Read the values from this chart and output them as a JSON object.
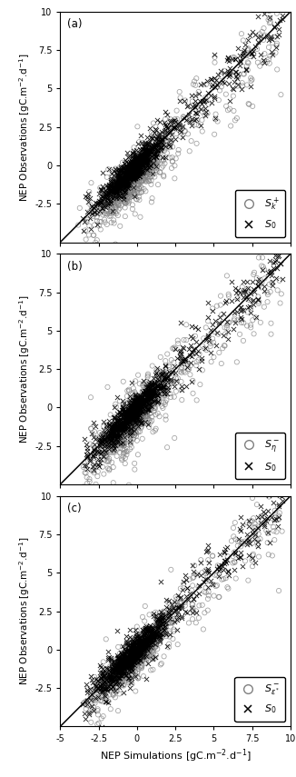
{
  "xlim": [
    -5,
    10
  ],
  "ylim": [
    -5,
    10
  ],
  "xticks": [
    -5,
    -2.5,
    0,
    2.5,
    5,
    7.5,
    10
  ],
  "yticks": [
    -2.5,
    0,
    2.5,
    5,
    7.5,
    10
  ],
  "xticklabels": [
    "-5",
    "-2.5",
    "0",
    "2.5",
    "5",
    "7.5",
    "10"
  ],
  "yticklabels": [
    "-2.5",
    "0",
    "2.5",
    "5",
    "7.5",
    "10"
  ],
  "xlabel": "NEP Simulations [gC.m$^{-2}$.d$^{-1}$]",
  "ylabel": "NEP Observations [gC.m$^{-2}$.d$^{-1}$]",
  "panel_labels": [
    "(a)",
    "(b)",
    "(c)"
  ],
  "legend_circle_labels": [
    "$S_k^+$",
    "$S_\\eta^-$",
    "$S_{\\varepsilon^*}^-$"
  ],
  "legend_cross_label": "$S_0$",
  "circle_color": "gray",
  "cross_color": "black",
  "n_cross_dense": 700,
  "n_cross_sparse": 250,
  "n_circle_dense": 500,
  "n_circle_sparse": 250,
  "seed": 42
}
